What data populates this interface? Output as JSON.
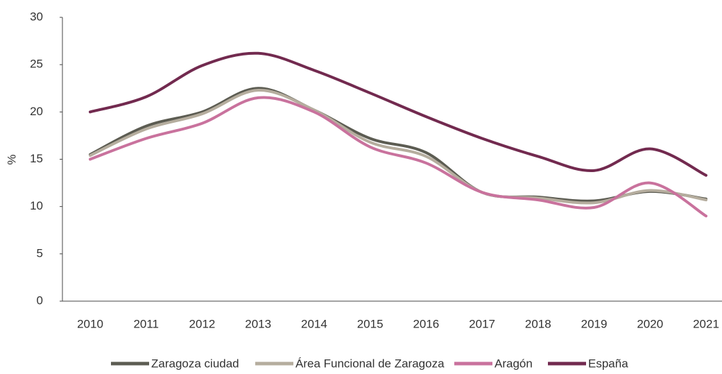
{
  "chart_data": {
    "type": "line",
    "y_label": "%",
    "categories": [
      "2010",
      "2011",
      "2012",
      "2013",
      "2014",
      "2015",
      "2016",
      "2017",
      "2018",
      "2019",
      "2020",
      "2021"
    ],
    "series": [
      {
        "name": "Zaragoza ciudad",
        "color": "#5c5c52",
        "values": [
          15.5,
          18.5,
          20.0,
          22.5,
          20.2,
          17.2,
          15.7,
          11.5,
          11.0,
          10.6,
          11.6,
          10.8
        ]
      },
      {
        "name": "Área Funcional de Zaragoza",
        "color": "#b5ad9e",
        "values": [
          15.4,
          18.2,
          19.8,
          22.3,
          20.2,
          16.8,
          15.3,
          11.5,
          10.9,
          10.4,
          11.7,
          10.7
        ]
      },
      {
        "name": "Aragón",
        "color": "#c9729d",
        "values": [
          15.0,
          17.2,
          18.8,
          21.5,
          20.0,
          16.3,
          14.6,
          11.5,
          10.7,
          9.9,
          12.5,
          9.0
        ]
      },
      {
        "name": "España",
        "color": "#722a4f",
        "values": [
          20.0,
          21.6,
          24.9,
          26.2,
          24.4,
          22.0,
          19.5,
          17.2,
          15.3,
          13.8,
          16.1,
          13.3
        ]
      }
    ],
    "ylim": [
      0,
      30
    ],
    "yticks": [
      0,
      5,
      10,
      15,
      20,
      25,
      30
    ],
    "grid": false,
    "legend": "bottom"
  }
}
